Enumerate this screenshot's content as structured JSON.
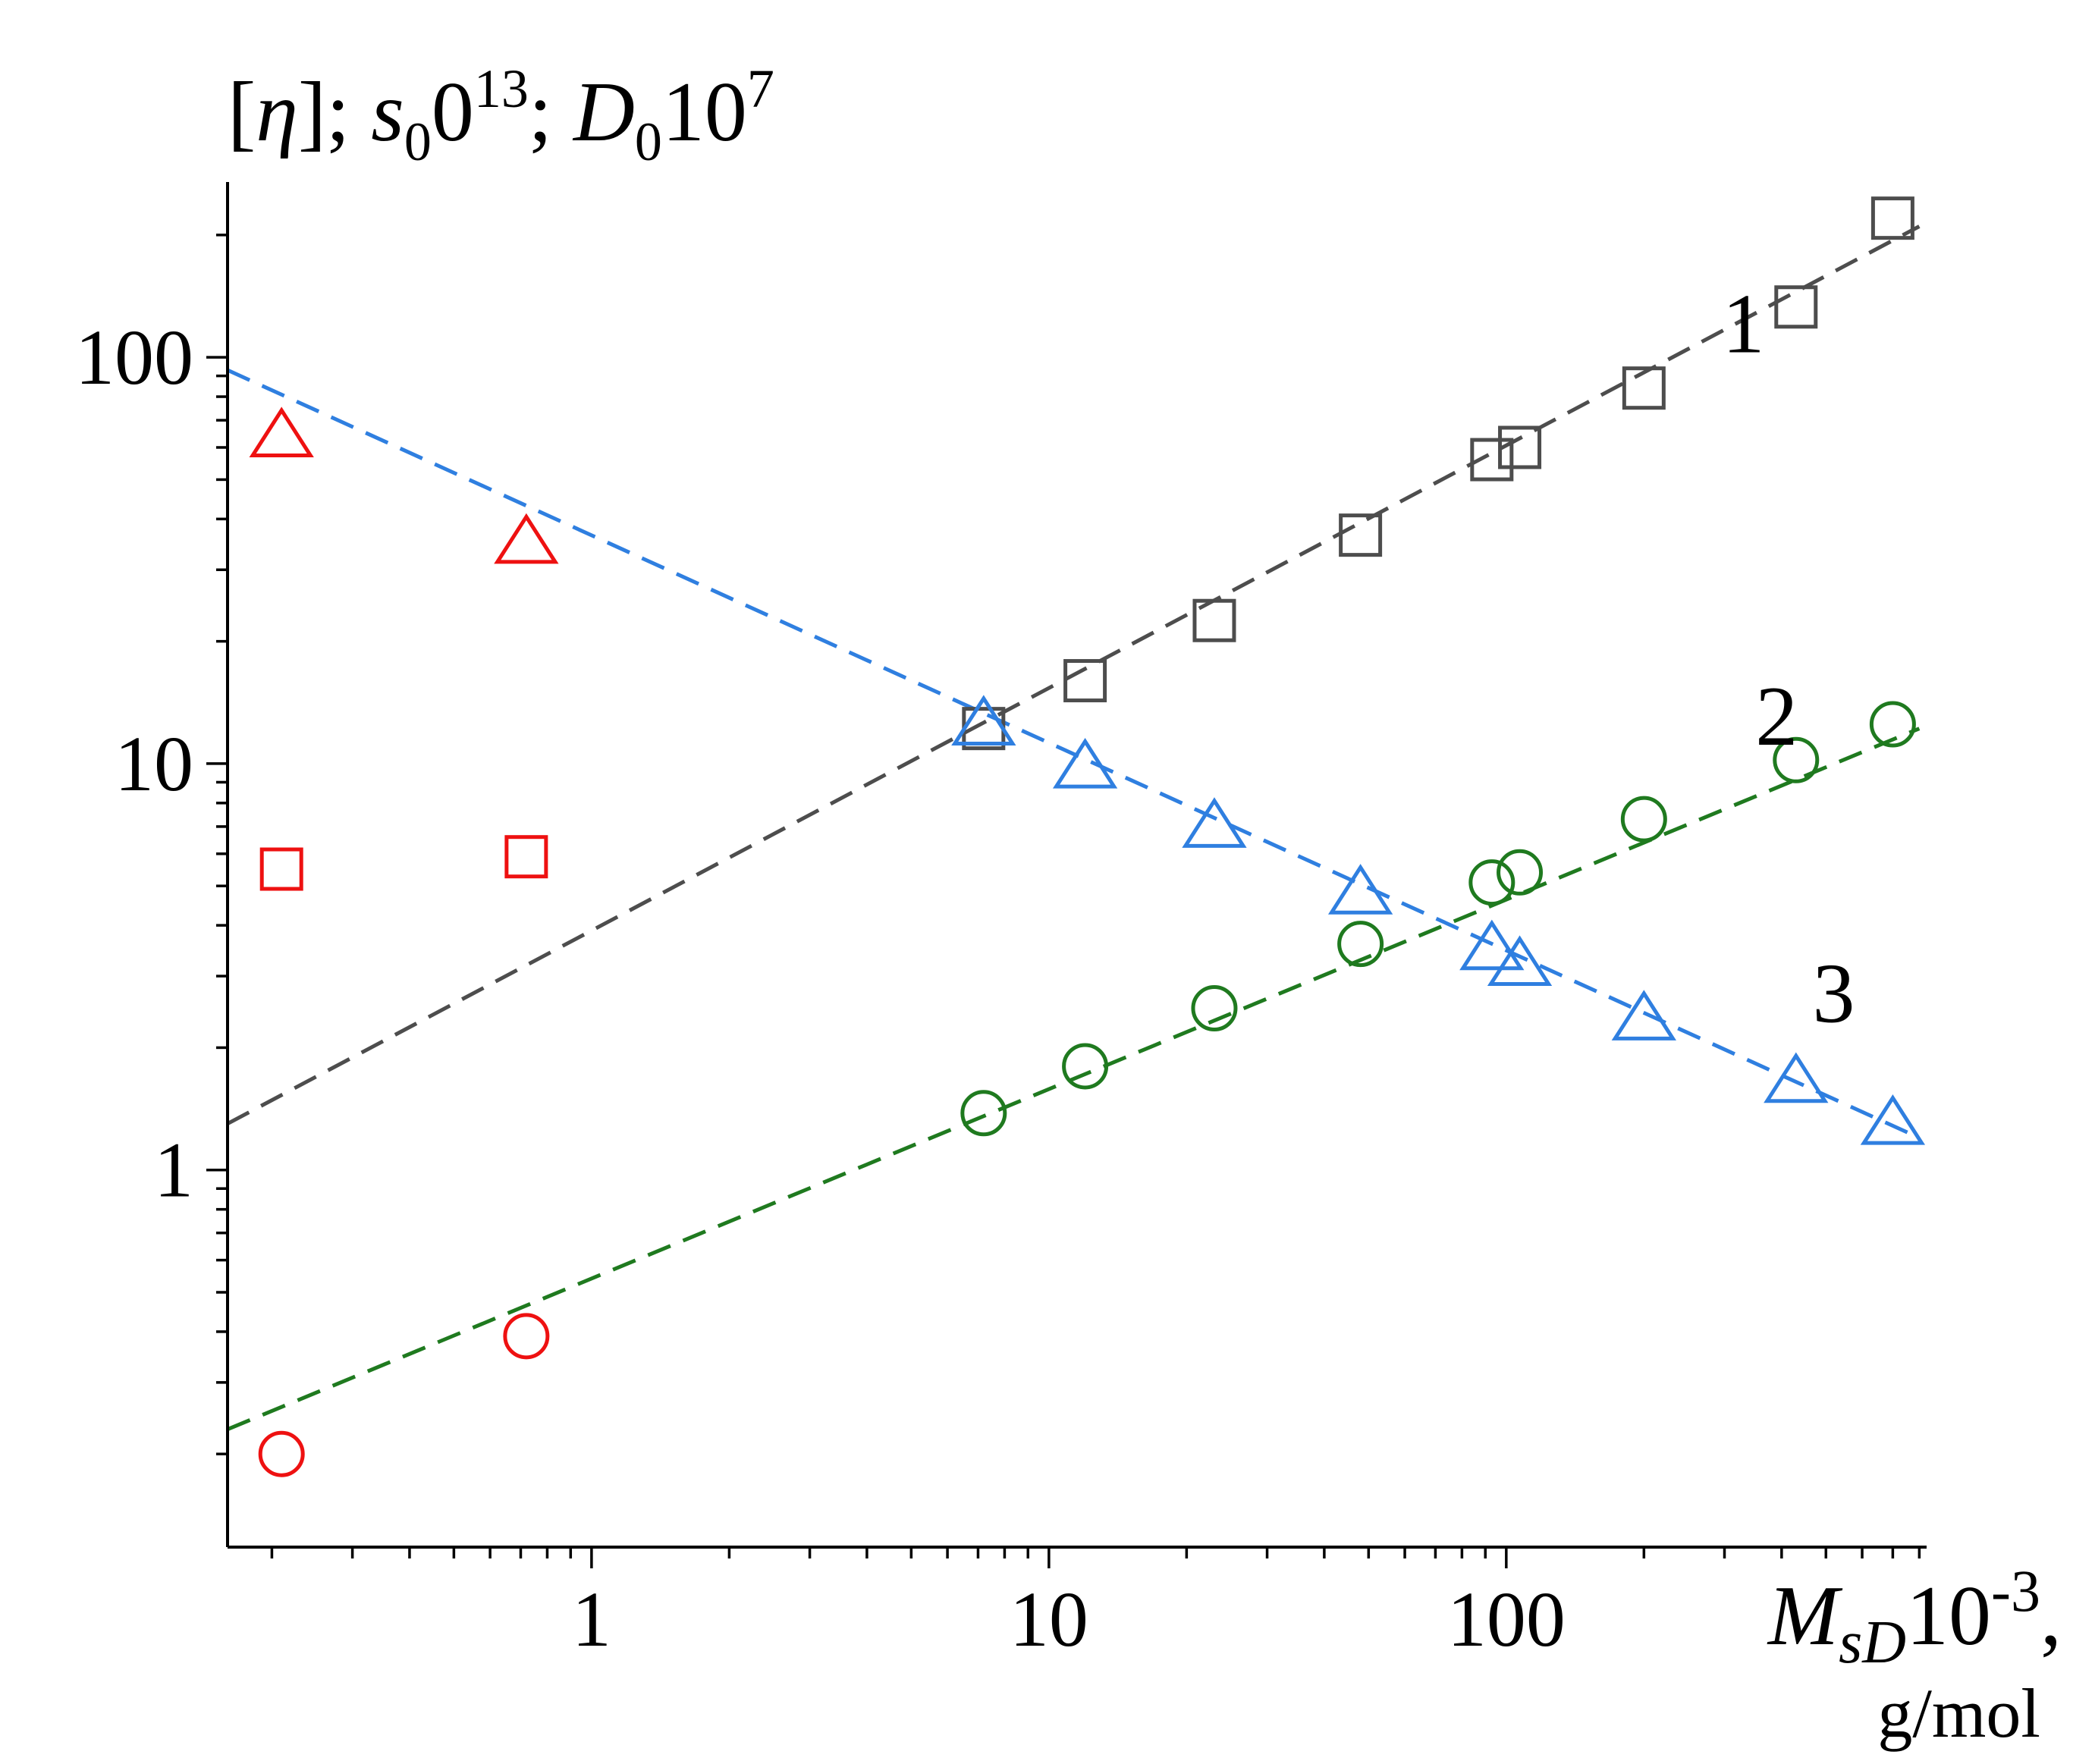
{
  "chart_data": {
    "type": "scatter",
    "title": "",
    "ylabel": "[η]; s₀0¹³; D₀10⁷",
    "ylabel_parts": {
      "open": "[",
      "eta": "η",
      "close": "]; ",
      "s": "s",
      "s_sub": "0",
      "s_mid": "0",
      "s_sup": "13",
      "sep": "; ",
      "D": "D",
      "D_sub": "0",
      "D_mid": "10",
      "D_sup": "7"
    },
    "xlabel": "M_sD10^-3, g/mol",
    "xlabel_parts": {
      "M": "M",
      "sub": "sD",
      "mid": "10",
      "sup": "-3",
      "comma": ",",
      "unit": "g/mol"
    },
    "x_scale": "log",
    "y_scale": "log",
    "xlim": [
      0.16,
      830
    ],
    "ylim": [
      0.118,
      270
    ],
    "x_ticks": [
      1,
      10,
      100
    ],
    "x_tick_labels": [
      "1",
      "10",
      "100"
    ],
    "y_ticks": [
      1,
      10,
      100
    ],
    "y_tick_labels": [
      "1",
      "10",
      "100"
    ],
    "colors": {
      "black_series": "#4d4d4d",
      "green_series": "#1f7a1f",
      "blue_series": "#2f7fe0",
      "red_points": "#ee1111",
      "axis": "#000000"
    },
    "series": [
      {
        "name": "1",
        "label": "1",
        "marker": "square",
        "color": "#4d4d4d",
        "x": [
          7.2,
          12,
          23,
          48,
          93,
          107,
          200,
          430,
          700
        ],
        "y": [
          12.2,
          16,
          22.5,
          36.5,
          56,
          60,
          84,
          133,
          220
        ]
      },
      {
        "name": "2",
        "label": "2",
        "marker": "circle",
        "color": "#1f7a1f",
        "x": [
          7.2,
          12,
          23,
          48,
          93,
          107,
          200,
          430,
          700
        ],
        "y": [
          1.38,
          1.8,
          2.5,
          3.6,
          5.1,
          5.4,
          7.3,
          10.2,
          12.5
        ]
      },
      {
        "name": "3",
        "label": "3",
        "marker": "triangle",
        "color": "#2f7fe0",
        "x": [
          7.2,
          12,
          23,
          48,
          93,
          107,
          200,
          430,
          700
        ],
        "y": [
          12.5,
          9.8,
          7.0,
          4.8,
          3.5,
          3.2,
          2.35,
          1.65,
          1.3
        ]
      },
      {
        "name": "red squares",
        "marker": "square",
        "color": "#ee1111",
        "x": [
          0.21,
          0.72
        ],
        "y": [
          5.5,
          5.9
        ]
      },
      {
        "name": "red circles",
        "marker": "circle",
        "color": "#ee1111",
        "x": [
          0.21,
          0.72
        ],
        "y": [
          0.2,
          0.39
        ]
      },
      {
        "name": "red triangles",
        "marker": "triangle",
        "color": "#ee1111",
        "x": [
          0.21,
          0.72
        ],
        "y": [
          64,
          35
        ]
      }
    ],
    "fit_lines": [
      {
        "series": "1",
        "color": "#4d4d4d",
        "x": [
          0.16,
          800
        ],
        "y": [
          1.3,
          210
        ]
      },
      {
        "series": "2",
        "color": "#1f7a1f",
        "x": [
          0.16,
          800
        ],
        "y": [
          0.23,
          12.2
        ]
      },
      {
        "series": "3",
        "color": "#2f7fe0",
        "x": [
          0.16,
          800
        ],
        "y": [
          93,
          1.2
        ]
      }
    ],
    "curve_labels": [
      {
        "text": "1",
        "x": 330,
        "y": 120
      },
      {
        "text": "2",
        "x": 390,
        "y": 13
      },
      {
        "text": "3",
        "x": 520,
        "y": 2.7
      }
    ]
  }
}
